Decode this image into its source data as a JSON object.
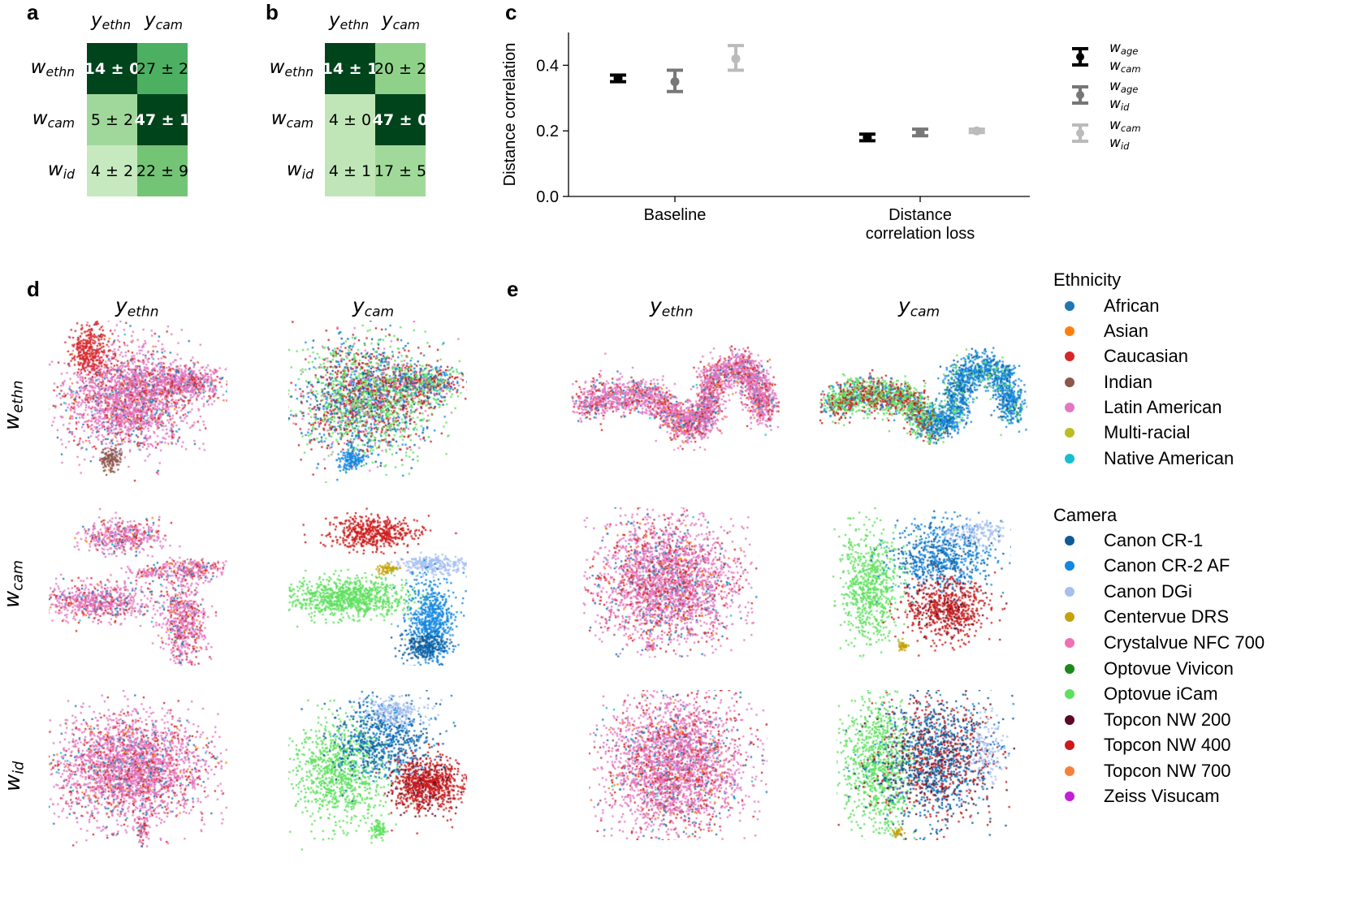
{
  "panel_labels": {
    "a": "a",
    "b": "b",
    "c": "c",
    "d": "d",
    "e": "e"
  },
  "heatmap_a": {
    "col_headers": [
      {
        "base": "y",
        "sub": "ethn"
      },
      {
        "base": "y",
        "sub": "cam"
      }
    ],
    "row_headers": [
      {
        "base": "w",
        "sub": "ethn"
      },
      {
        "base": "w",
        "sub": "cam"
      },
      {
        "base": "w",
        "sub": "id"
      }
    ],
    "cells": [
      {
        "text": "14 ± 0",
        "value": 14,
        "bg": "#00441b",
        "fg": "#ffffff",
        "bold": true
      },
      {
        "text": "27 ± 2",
        "value": 27,
        "bg": "#4daf62",
        "fg": "#000000",
        "bold": false
      },
      {
        "text": "5 ± 2",
        "value": 5,
        "bg": "#a0d89b",
        "fg": "#000000",
        "bold": false
      },
      {
        "text": "47 ± 1",
        "value": 47,
        "bg": "#00441b",
        "fg": "#ffffff",
        "bold": true
      },
      {
        "text": "4 ± 2",
        "value": 4,
        "bg": "#c7e9c0",
        "fg": "#000000",
        "bold": false
      },
      {
        "text": "22 ± 9",
        "value": 22,
        "bg": "#74c476",
        "fg": "#000000",
        "bold": false
      }
    ]
  },
  "heatmap_b": {
    "col_headers": [
      {
        "base": "y",
        "sub": "ethn"
      },
      {
        "base": "y",
        "sub": "cam"
      }
    ],
    "row_headers": [
      {
        "base": "w",
        "sub": "ethn"
      },
      {
        "base": "w",
        "sub": "cam"
      },
      {
        "base": "w",
        "sub": "id"
      }
    ],
    "cells": [
      {
        "text": "14 ± 1",
        "value": 14,
        "bg": "#00441b",
        "fg": "#ffffff",
        "bold": true
      },
      {
        "text": "20 ± 2",
        "value": 20,
        "bg": "#90d18a",
        "fg": "#000000",
        "bold": false
      },
      {
        "text": "4 ± 0",
        "value": 4,
        "bg": "#c0e6b8",
        "fg": "#000000",
        "bold": false
      },
      {
        "text": "47 ± 0",
        "value": 47,
        "bg": "#00441b",
        "fg": "#ffffff",
        "bold": true
      },
      {
        "text": "4 ± 1",
        "value": 4,
        "bg": "#c0e6b8",
        "fg": "#000000",
        "bold": false
      },
      {
        "text": "17 ± 5",
        "value": 17,
        "bg": "#a1d99b",
        "fg": "#000000",
        "bold": false
      }
    ]
  },
  "chart_data": {
    "type": "scatter",
    "ylabel": "Distance correlation",
    "ylim": [
      0,
      0.5
    ],
    "yticks": [
      {
        "v": 0.0,
        "label": "0.0"
      },
      {
        "v": 0.2,
        "label": "0.2"
      },
      {
        "v": 0.4,
        "label": "0.4"
      }
    ],
    "categories": [
      "Baseline",
      "Distance\ncorrelation loss"
    ],
    "series": [
      {
        "name": "w_age / w_cam",
        "l1": "w",
        "l1sub": "age",
        "l2": "w",
        "l2sub": "cam",
        "color": "#000000",
        "mean": [
          0.36,
          0.18
        ],
        "low": [
          0.35,
          0.17
        ],
        "high": [
          0.37,
          0.19
        ]
      },
      {
        "name": "w_age / w_id",
        "l1": "w",
        "l1sub": "age",
        "l2": "w",
        "l2sub": "id",
        "color": "#777777",
        "mean": [
          0.35,
          0.195
        ],
        "low": [
          0.32,
          0.185
        ],
        "high": [
          0.385,
          0.205
        ]
      },
      {
        "name": "w_cam / w_id",
        "l1": "w",
        "l1sub": "cam",
        "l2": "w",
        "l2sub": "id",
        "color": "#bbbbbb",
        "mean": [
          0.42,
          0.2
        ],
        "low": [
          0.385,
          0.195
        ],
        "high": [
          0.46,
          0.205
        ]
      }
    ]
  },
  "scatter_grid": {
    "col_headers": [
      {
        "base": "y",
        "sub": "ethn"
      },
      {
        "base": "y",
        "sub": "cam"
      }
    ],
    "row_headers": [
      {
        "base": "w",
        "sub": "ethn"
      },
      {
        "base": "w",
        "sub": "cam"
      },
      {
        "base": "w",
        "sub": "id"
      }
    ]
  },
  "legend_ethnicity": {
    "title": "Ethnicity",
    "items": [
      {
        "label": "African",
        "color": "#1f77b4"
      },
      {
        "label": "Asian",
        "color": "#ff7f0e"
      },
      {
        "label": "Caucasian",
        "color": "#d62728"
      },
      {
        "label": "Indian",
        "color": "#8c564b"
      },
      {
        "label": "Latin American",
        "color": "#e377c2"
      },
      {
        "label": "Multi-racial",
        "color": "#bcbd22"
      },
      {
        "label": "Native American",
        "color": "#17becf"
      }
    ]
  },
  "legend_camera": {
    "title": "Camera",
    "items": [
      {
        "label": "Canon CR-1",
        "color": "#0d5a96"
      },
      {
        "label": "Canon CR-2 AF",
        "color": "#1487e0"
      },
      {
        "label": "Canon DGi",
        "color": "#a6bff0"
      },
      {
        "label": "Centervue DRS",
        "color": "#c4a20a"
      },
      {
        "label": "Crystalvue NFC 700",
        "color": "#f06fb5"
      },
      {
        "label": "Optovue Vivicon",
        "color": "#1a8a1a"
      },
      {
        "label": "Optovue iCam",
        "color": "#5ee05e"
      },
      {
        "label": "Topcon NW 200",
        "color": "#5a0a25"
      },
      {
        "label": "Topcon NW 400",
        "color": "#cc1a1a"
      },
      {
        "label": "Topcon NW 700",
        "color": "#f5803a"
      },
      {
        "label": "Zeiss Visucam",
        "color": "#c21fd6"
      }
    ]
  }
}
